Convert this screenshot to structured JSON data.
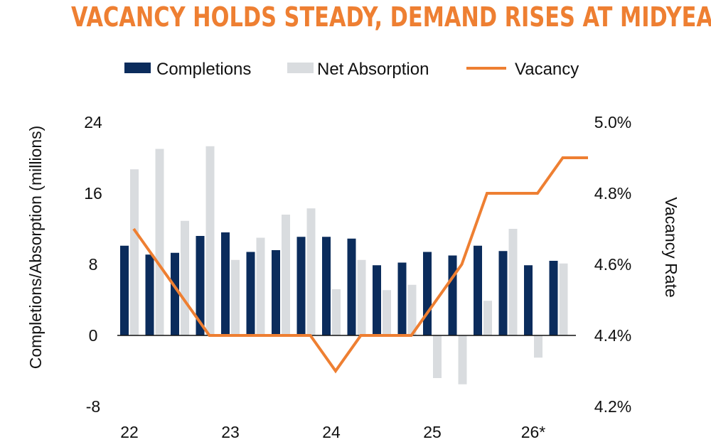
{
  "chart_data": {
    "type": "bar+line",
    "title": "VACANCY HOLDS STEADY, DEMAND RISES AT MIDYEAR",
    "ylabel": "Completions/Absorption (millions)",
    "y2label": "Vacancy Rate",
    "ylim": [
      -8,
      24
    ],
    "yticks": [
      "24",
      "16",
      "8",
      "0",
      "-8"
    ],
    "y2lim": [
      4.2,
      5.0
    ],
    "y2ticks": [
      "5.0%",
      "4.8%",
      "4.6%",
      "4.4%",
      "4.2%"
    ],
    "xticks": [
      {
        "label": "22",
        "period": 0
      },
      {
        "label": "23",
        "period": 4
      },
      {
        "label": "24",
        "period": 8
      },
      {
        "label": "25",
        "period": 12
      },
      {
        "label": "26*",
        "period": 16
      }
    ],
    "legend_position": "top-center",
    "series": [
      {
        "name": "Completions",
        "kind": "bar",
        "color": "#0b2c5c",
        "values": [
          10.1,
          9.1,
          9.3,
          11.2,
          11.6,
          9.4,
          9.6,
          11.1,
          11.1,
          10.9,
          7.9,
          8.2,
          9.4,
          9.0,
          10.1,
          9.5,
          7.9,
          8.4
        ]
      },
      {
        "name": "Net Absorption",
        "kind": "bar",
        "color": "#d9dcdf",
        "values": [
          18.7,
          21.0,
          12.9,
          21.3,
          8.5,
          11.0,
          13.6,
          14.3,
          5.2,
          8.5,
          5.1,
          5.7,
          -4.8,
          -5.5,
          3.9,
          12.0,
          -2.5,
          8.1
        ]
      },
      {
        "name": "Vacancy",
        "kind": "line",
        "color": "#ee7f32",
        "values": [
          4.7,
          4.6,
          4.5,
          4.4,
          4.4,
          4.4,
          4.4,
          4.4,
          4.3,
          4.4,
          4.4,
          4.4,
          4.5,
          4.6,
          4.8,
          4.8,
          4.8,
          4.9,
          4.9
        ]
      }
    ]
  }
}
